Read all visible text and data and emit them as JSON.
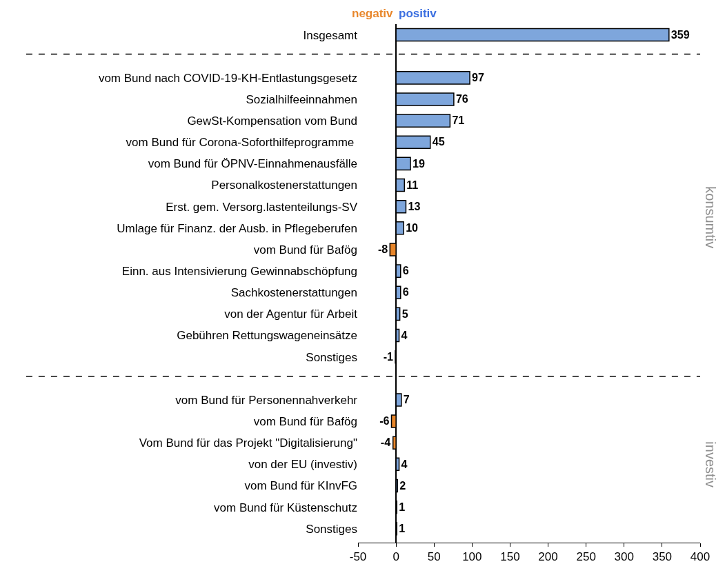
{
  "chart_data": {
    "type": "bar",
    "orientation": "horizontal",
    "categories": [
      "Insgesamt",
      null,
      "vom Bund nach COVID-19-KH-Entlastungsgesetz",
      "Sozialhilfeeinnahmen",
      "GewSt-Kompensation vom Bund",
      "vom Bund für Corona-Soforthilfeprogramme ",
      "vom Bund für ÖPNV-Einnahmenausfälle",
      "Personalkostenerstattungen",
      "Erst. gem. Versorg.lastenteilungs-SV",
      "Umlage für Finanz. der Ausb. in Pflegeberufen",
      "vom Bund für Bafög",
      "Einn. aus Intensivierung Gewinnabschöpfung",
      "Sachkostenerstattungen",
      "von der Agentur für Arbeit",
      "Gebühren Rettungswageneinsätze",
      "Sonstiges",
      null,
      "vom Bund für Personennahverkehr",
      "vom Bund für Bafög",
      "Vom Bund für das Projekt \"Digitalisierung\"",
      "von der EU (investiv)",
      "vom Bund für KInvFG",
      "vom Bund für Küstenschutz",
      "Sonstiges"
    ],
    "values": [
      359,
      null,
      97,
      76,
      71,
      45,
      19,
      11,
      13,
      10,
      -8,
      6,
      6,
      5,
      4,
      -1,
      null,
      7,
      -6,
      -4,
      4,
      2,
      1,
      1
    ],
    "colors": [
      "#7ea6dc",
      null,
      "#7ea6dc",
      "#7ea6dc",
      "#7ea6dc",
      "#7ea6dc",
      "#7ea6dc",
      "#7ea6dc",
      "#7ea6dc",
      "#7ea6dc",
      "#e8862a",
      "#7ea6dc",
      "#7ea6dc",
      "#7ea6dc",
      "#7ea6dc",
      "#e8862a",
      null,
      "#7ea6dc",
      "#e8862a",
      "#e8862a",
      "#7ea6dc",
      "#7ea6dc",
      "#7ea6dc",
      "#7ea6dc"
    ],
    "data_labels": true,
    "xlim": [
      -50,
      400
    ],
    "xticks": [
      -50,
      0,
      50,
      100,
      150,
      200,
      250,
      300,
      350,
      400
    ],
    "annotations": [
      "negativ",
      "positiv",
      "konsumtiv",
      "investiv"
    ]
  }
}
